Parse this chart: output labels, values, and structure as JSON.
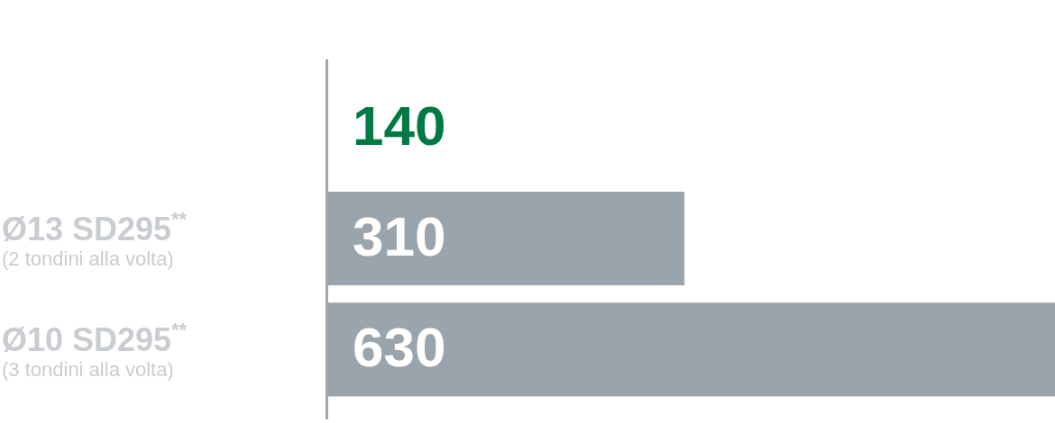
{
  "chart_data": {
    "type": "bar",
    "orientation": "horizontal",
    "categories": [
      null,
      "Ø13 SD295$^{**}$\n(2 tondini alla volta)",
      "Ø10 SD295$^{**}$\n(3 tondini alla volta)"
    ],
    "values": [
      null,
      310,
      630
    ],
    "value_labels": [
      "140",
      "310",
      "630"
    ],
    "colors": [
      "#007a45",
      "#9aa4ad",
      "#9aa4ad"
    ],
    "xlim": [
      0,
      630
    ],
    "legend": false
  }
}
